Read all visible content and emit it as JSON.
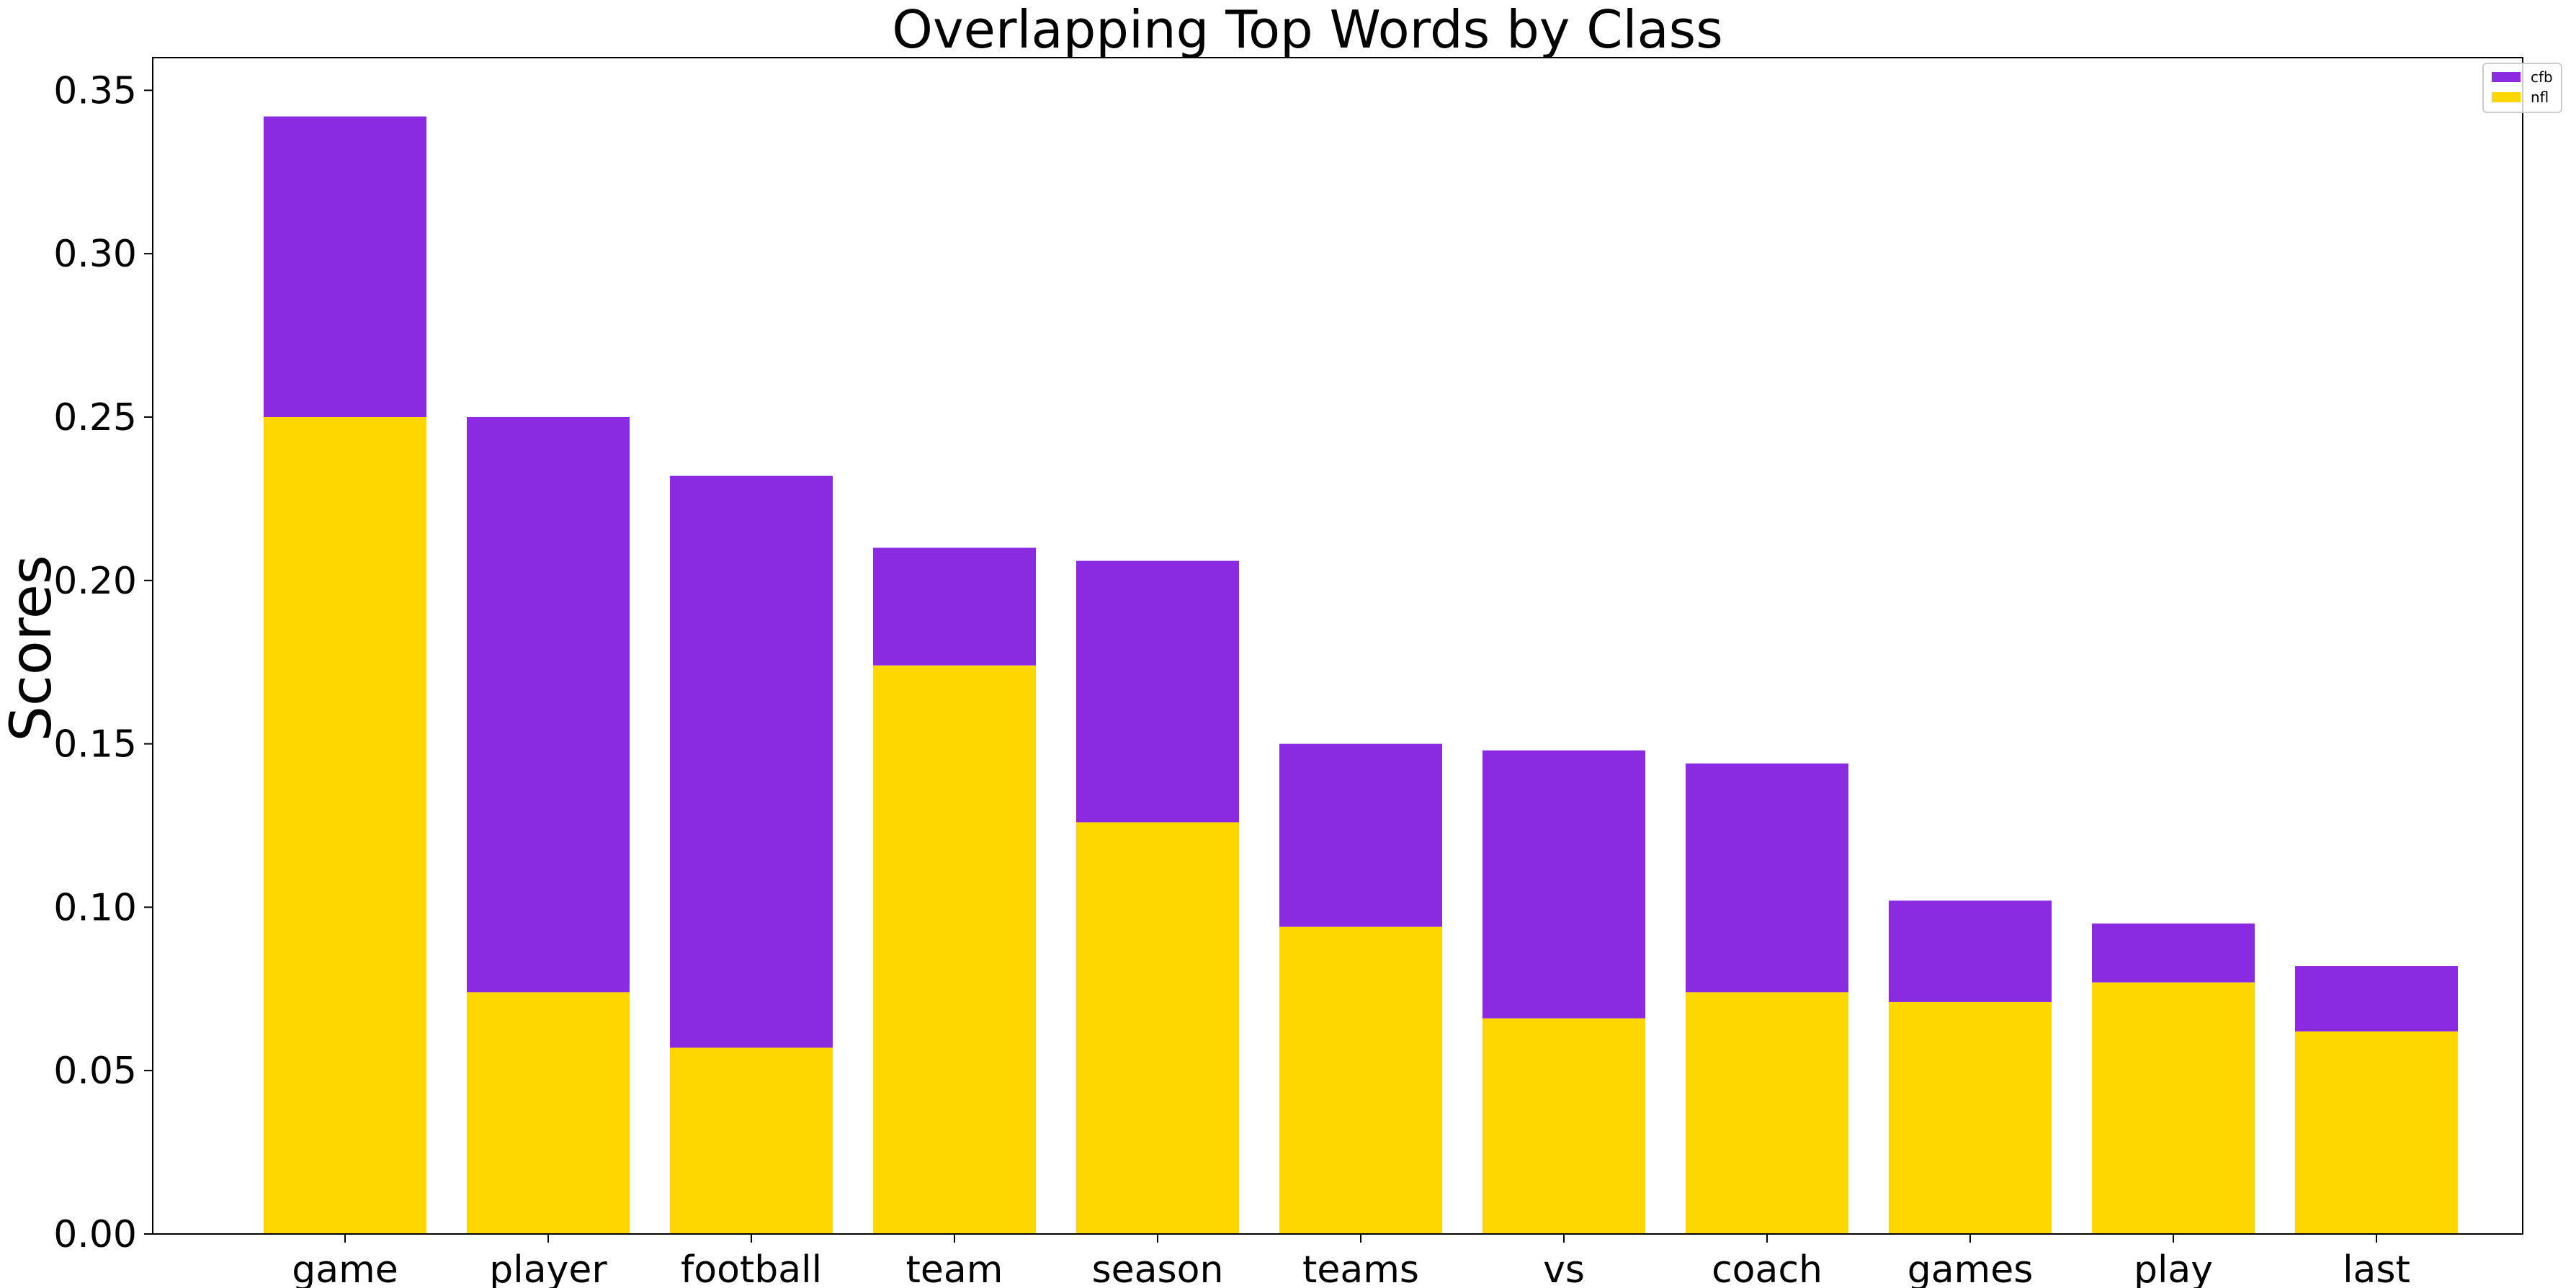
{
  "chart_data": {
    "type": "bar",
    "stacked": true,
    "title": "Overlapping Top Words by Class",
    "xlabel": "",
    "ylabel": "Scores",
    "ylim": [
      0,
      0.36
    ],
    "yticks": [
      "0.00",
      "0.05",
      "0.10",
      "0.15",
      "0.20",
      "0.25",
      "0.30",
      "0.35"
    ],
    "categories": [
      "game",
      "player",
      "football",
      "team",
      "season",
      "teams",
      "vs",
      "coach",
      "games",
      "play",
      "last"
    ],
    "series": [
      {
        "name": "nfl",
        "color": "#FFD700",
        "values": [
          0.25,
          0.074,
          0.057,
          0.174,
          0.126,
          0.094,
          0.066,
          0.074,
          0.071,
          0.077,
          0.062
        ]
      },
      {
        "name": "cfb",
        "color": "#8A2BE2",
        "values": [
          0.092,
          0.176,
          0.175,
          0.036,
          0.08,
          0.056,
          0.082,
          0.07,
          0.031,
          0.018,
          0.02
        ]
      }
    ],
    "legend": {
      "position": "top-right",
      "order": [
        "cfb",
        "nfl"
      ]
    },
    "grid": false
  }
}
